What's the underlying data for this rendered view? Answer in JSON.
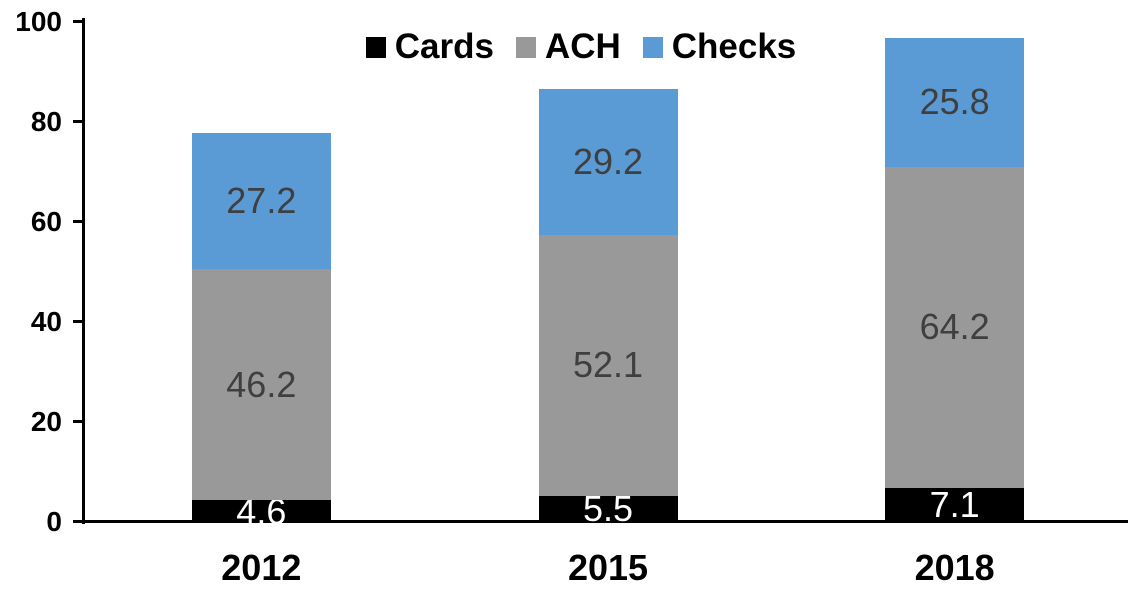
{
  "chart_data": {
    "type": "bar",
    "stacked": true,
    "categories": [
      "2012",
      "2015",
      "2018"
    ],
    "series": [
      {
        "name": "Cards",
        "color": "#000000",
        "label_color": "#FFFFFF",
        "values": [
          4.6,
          5.5,
          7.1
        ]
      },
      {
        "name": "ACH",
        "color": "#999999",
        "label_color": "#3F3F3F",
        "values": [
          46.2,
          52.1,
          64.2
        ]
      },
      {
        "name": "Checks",
        "color": "#5B9BD5",
        "label_color": "#3F3F3F",
        "values": [
          27.2,
          29.2,
          25.8
        ]
      }
    ],
    "totals": [
      78.0,
      86.8,
      97.1
    ],
    "xlabel": "",
    "ylabel": "",
    "ylim": [
      0,
      100
    ],
    "yticks": [
      0,
      20,
      40,
      60,
      80,
      100
    ],
    "grid": false,
    "legend_position": "top-center",
    "data_labels": true,
    "label_decimals": 1,
    "axis_color": "#000000",
    "background_color": "#FFFFFF"
  }
}
